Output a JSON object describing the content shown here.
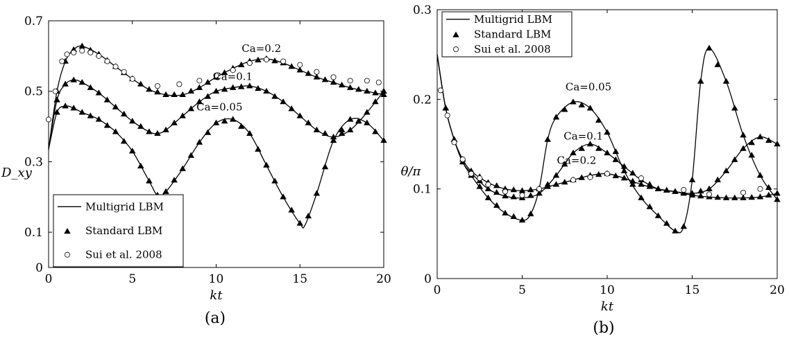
{
  "chart_data": [
    {
      "type": "line",
      "panel_label": "(a)",
      "xlabel": "kt",
      "ylabel": "D_xy",
      "xlim": [
        0,
        20
      ],
      "ylim": [
        0,
        0.7
      ],
      "xticks": [
        "0",
        "5",
        "10",
        "15",
        "20"
      ],
      "yticks": [
        "0",
        "0.1",
        "0.3",
        "0.5",
        "0.7"
      ],
      "ytick_values": [
        0,
        0.1,
        0.3,
        0.5,
        0.7
      ],
      "legend": {
        "placement": "bottom-left",
        "entries": [
          {
            "label": "Multigrid LBM",
            "marker": "line"
          },
          {
            "label": "Standard LBM",
            "marker": "triangle"
          },
          {
            "label": "Sui et al. 2008",
            "marker": "circle"
          }
        ]
      },
      "annotations": [
        {
          "text": "Ca=0.2",
          "x": 12.7,
          "y": 0.612
        },
        {
          "text": "Ca=0.1",
          "x": 11.0,
          "y": 0.532
        },
        {
          "text": "Ca=0.05",
          "x": 10.2,
          "y": 0.445
        }
      ],
      "series": [
        {
          "label": "Ca=0.2",
          "x": [
            0,
            0.5,
            1,
            1.5,
            2,
            3,
            4,
            5,
            6,
            7,
            8,
            9,
            10,
            11,
            12,
            13,
            14,
            15,
            16,
            17,
            18,
            19,
            20
          ],
          "y": [
            0.335,
            0.5,
            0.585,
            0.618,
            0.628,
            0.605,
            0.57,
            0.535,
            0.505,
            0.49,
            0.49,
            0.51,
            0.54,
            0.565,
            0.585,
            0.592,
            0.58,
            0.56,
            0.54,
            0.525,
            0.51,
            0.5,
            0.49
          ]
        },
        {
          "label": "Ca=0.1",
          "x": [
            0,
            0.5,
            1,
            1.5,
            2,
            3,
            4,
            5,
            6,
            6.5,
            7,
            8,
            9,
            10,
            11,
            12,
            13,
            14,
            15,
            16,
            17,
            18,
            19,
            20
          ],
          "y": [
            0.335,
            0.475,
            0.52,
            0.532,
            0.525,
            0.495,
            0.455,
            0.415,
            0.385,
            0.38,
            0.39,
            0.43,
            0.47,
            0.5,
            0.51,
            0.515,
            0.5,
            0.47,
            0.43,
            0.39,
            0.37,
            0.39,
            0.44,
            0.5
          ]
        },
        {
          "label": "Ca=0.05",
          "x": [
            0,
            0.5,
            1,
            1.5,
            2,
            3,
            4,
            5,
            6,
            6.5,
            7,
            8,
            9,
            10,
            11,
            12,
            13,
            14,
            15,
            15.3,
            16,
            17,
            18,
            19,
            20
          ],
          "y": [
            0.335,
            0.44,
            0.458,
            0.452,
            0.44,
            0.42,
            0.385,
            0.33,
            0.245,
            0.205,
            0.215,
            0.28,
            0.355,
            0.41,
            0.42,
            0.38,
            0.29,
            0.2,
            0.125,
            0.12,
            0.21,
            0.36,
            0.42,
            0.41,
            0.36
          ]
        }
      ],
      "markers": {
        "standard_lbm": [
          {
            "series": "Ca=0.2",
            "x": [
              0.5,
              1,
              1.5,
              2,
              2.5,
              3,
              3.5,
              4,
              4.5,
              5,
              5.5,
              6,
              6.5,
              7,
              7.5,
              8,
              8.5,
              9,
              9.5,
              10,
              10.5,
              11,
              11.5,
              12,
              12.5,
              13,
              13.5,
              14,
              14.5,
              15,
              15.5,
              16,
              16.5,
              17,
              17.5,
              18,
              18.5,
              19,
              19.5,
              20
            ]
          },
          {
            "series": "Ca=0.1",
            "x": [
              0.5,
              1,
              1.5,
              2,
              2.5,
              3,
              3.5,
              4,
              4.5,
              5,
              5.5,
              6,
              6.5,
              7,
              7.5,
              8,
              8.5,
              9,
              9.5,
              10,
              10.5,
              11,
              11.5,
              12,
              12.5,
              13,
              13.5,
              14,
              14.5,
              15,
              15.5,
              16,
              16.5,
              17,
              17.5,
              18,
              18.5,
              19,
              19.5,
              20
            ]
          },
          {
            "series": "Ca=0.05",
            "x": [
              0.5,
              1,
              1.5,
              2,
              2.5,
              3,
              3.5,
              4,
              4.5,
              5,
              5.5,
              6,
              6.5,
              7,
              7.5,
              8,
              8.5,
              9,
              9.5,
              10,
              10.5,
              11,
              11.5,
              12,
              12.5,
              13,
              13.5,
              14,
              14.5,
              15,
              15.5,
              16,
              16.5,
              17,
              17.5,
              18,
              18.5,
              19,
              19.5,
              20
            ]
          }
        ],
        "sui_2008": {
          "x": [
            0,
            0.4,
            0.8,
            1.1,
            1.5,
            2,
            2.5,
            3,
            3.5,
            4,
            4.5,
            5,
            6.5,
            7.8,
            9,
            10,
            11,
            12,
            13,
            14,
            15,
            16,
            17,
            18,
            19,
            19.7
          ],
          "y": [
            0.42,
            0.5,
            0.585,
            0.605,
            0.61,
            0.615,
            0.61,
            0.6,
            0.585,
            0.57,
            0.555,
            0.535,
            0.515,
            0.52,
            0.53,
            0.545,
            0.56,
            0.58,
            0.59,
            0.585,
            0.575,
            0.555,
            0.54,
            0.53,
            0.53,
            0.525
          ]
        }
      }
    },
    {
      "type": "line",
      "panel_label": "(b)",
      "xlabel": "kt",
      "ylabel": "θ/π",
      "xlim": [
        0,
        20
      ],
      "ylim": [
        0,
        0.3
      ],
      "xticks": [
        "0",
        "5",
        "10",
        "15",
        "20"
      ],
      "yticks": [
        "0",
        "0.1",
        "0.2",
        "0.3"
      ],
      "ytick_values": [
        0,
        0.1,
        0.2,
        0.3
      ],
      "legend": {
        "placement": "top-left",
        "entries": [
          {
            "label": "Multigrid LBM",
            "marker": "line"
          },
          {
            "label": "Standard LBM",
            "marker": "triangle"
          },
          {
            "label": "Sui et al. 2008",
            "marker": "circle"
          }
        ]
      },
      "annotations": [
        {
          "text": "Ca=0.05",
          "x": 8.9,
          "y": 0.21
        },
        {
          "text": "Ca=0.1",
          "x": 8.6,
          "y": 0.155
        },
        {
          "text": "Ca=0.2",
          "x": 8.2,
          "y": 0.128
        }
      ],
      "series": [
        {
          "label": "Ca=0.05",
          "x": [
            0,
            0.5,
            1,
            1.5,
            2,
            3,
            4,
            5,
            5.5,
            6,
            6.5,
            7,
            8,
            9,
            10,
            11,
            12,
            13,
            14,
            14.5,
            15,
            15.5,
            16,
            17,
            18,
            19,
            20
          ],
          "y": [
            0.25,
            0.19,
            0.155,
            0.13,
            0.115,
            0.09,
            0.073,
            0.065,
            0.072,
            0.1,
            0.155,
            0.18,
            0.197,
            0.19,
            0.163,
            0.12,
            0.09,
            0.07,
            0.053,
            0.058,
            0.11,
            0.22,
            0.257,
            0.22,
            0.16,
            0.115,
            0.088
          ]
        },
        {
          "label": "Ca=0.1",
          "x": [
            0,
            0.5,
            1,
            1.5,
            2,
            3,
            4,
            5,
            6,
            7,
            8,
            9,
            10,
            11,
            12,
            13,
            14,
            15,
            16,
            17,
            18,
            19,
            20
          ],
          "y": [
            0.25,
            0.19,
            0.155,
            0.13,
            0.118,
            0.1,
            0.092,
            0.09,
            0.095,
            0.115,
            0.14,
            0.15,
            0.14,
            0.125,
            0.11,
            0.1,
            0.097,
            0.095,
            0.1,
            0.12,
            0.145,
            0.158,
            0.15
          ]
        },
        {
          "label": "Ca=0.2",
          "x": [
            0,
            0.5,
            1,
            1.5,
            2,
            3,
            4,
            5,
            6,
            7,
            8,
            9,
            10,
            11,
            12,
            13,
            14,
            15,
            16,
            17,
            18,
            19,
            20
          ],
          "y": [
            0.25,
            0.19,
            0.155,
            0.133,
            0.12,
            0.107,
            0.1,
            0.098,
            0.1,
            0.105,
            0.11,
            0.115,
            0.117,
            0.112,
            0.105,
            0.1,
            0.097,
            0.093,
            0.091,
            0.09,
            0.09,
            0.091,
            0.095
          ]
        }
      ],
      "markers": {
        "standard_lbm": [
          {
            "series": "Ca=0.05",
            "x": [
              0.5,
              1,
              1.5,
              2,
              2.5,
              3,
              3.5,
              4,
              4.5,
              5,
              5.5,
              6,
              6.5,
              7,
              7.5,
              8,
              8.5,
              9,
              9.5,
              10,
              10.5,
              11,
              11.5,
              12,
              12.5,
              13,
              13.5,
              14,
              14.5,
              15,
              15.5,
              16,
              16.5,
              17,
              17.5,
              18,
              18.5,
              19,
              19.5,
              20
            ]
          },
          {
            "series": "Ca=0.1",
            "x": [
              0.5,
              1,
              1.5,
              2,
              2.5,
              3,
              3.5,
              4,
              4.5,
              5,
              5.5,
              6,
              6.5,
              7,
              7.5,
              8,
              8.5,
              9,
              9.5,
              10,
              10.5,
              11,
              11.5,
              12,
              12.5,
              13,
              13.5,
              14,
              14.5,
              15,
              15.5,
              16,
              16.5,
              17,
              17.5,
              18,
              18.5,
              19,
              19.5,
              20
            ]
          },
          {
            "series": "Ca=0.2",
            "x": [
              0.5,
              1,
              1.5,
              2,
              2.5,
              3,
              3.5,
              4,
              4.5,
              5,
              5.5,
              6,
              6.5,
              7,
              7.5,
              8,
              8.5,
              9,
              9.5,
              10,
              10.5,
              11,
              11.5,
              12,
              12.5,
              13,
              13.5,
              14,
              14.5,
              15,
              15.5,
              16,
              16.5,
              17,
              17.5,
              18,
              18.5,
              19,
              19.5,
              20
            ]
          }
        ],
        "sui_2008": {
          "x": [
            0.2,
            0.6,
            1,
            1.5,
            2,
            2.5,
            3,
            4,
            5,
            6,
            8,
            9,
            10,
            12,
            14.5,
            16,
            18,
            19
          ],
          "y": [
            0.21,
            0.182,
            0.152,
            0.133,
            0.117,
            0.112,
            0.105,
            0.097,
            0.093,
            0.1,
            0.11,
            0.113,
            0.117,
            0.112,
            0.099,
            0.094,
            0.096,
            0.1
          ]
        }
      }
    }
  ]
}
